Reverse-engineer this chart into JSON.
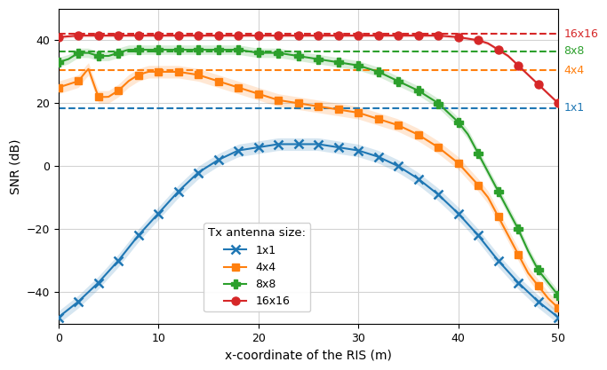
{
  "xlabel": "x-coordinate of the RIS (m)",
  "ylabel": "SNR (dB)",
  "xlim": [
    0,
    50
  ],
  "ylim": [
    -50,
    50
  ],
  "yticks": [
    -40,
    -20,
    0,
    20,
    40
  ],
  "xticks": [
    0,
    10,
    20,
    30,
    40,
    50
  ],
  "colors": {
    "1x1": "#1f77b4",
    "4x4": "#ff7f0e",
    "8x8": "#2ca02c",
    "16x16": "#d62728"
  },
  "hlines": {
    "1x1": 18.5,
    "4x4": 30.5,
    "8x8": 36.5,
    "16x16": 42.0
  },
  "legend_title": "Tx antenna size:",
  "right_labels_order": [
    "16x16",
    "8x8",
    "4x4",
    "1x1"
  ],
  "ci": {
    "1x1": 2.0,
    "4x4": 2.0,
    "8x8": 1.5,
    "16x16": 0.5
  },
  "y_1x1_pts": {
    "0": -48,
    "2": -43,
    "4": -37,
    "6": -30,
    "8": -22,
    "10": -15,
    "12": -8,
    "14": -2,
    "16": 2,
    "18": 5,
    "20": 6,
    "22": 7,
    "24": 7,
    "25": 7,
    "26": 7,
    "28": 6,
    "30": 5,
    "32": 3,
    "34": 0,
    "36": -4,
    "38": -9,
    "40": -15,
    "42": -22,
    "44": -30,
    "46": -37,
    "48": -43,
    "50": -48
  },
  "y_4x4_pts": {
    "0": 25,
    "2": 27,
    "3": 31,
    "4": 22,
    "5": 22,
    "6": 24,
    "7": 27,
    "8": 29,
    "9": 30,
    "10": 30,
    "12": 30,
    "14": 29,
    "16": 27,
    "18": 25,
    "20": 23,
    "22": 21,
    "24": 20,
    "26": 19,
    "28": 18,
    "30": 17,
    "32": 15,
    "34": 13,
    "36": 10,
    "38": 6,
    "40": 1,
    "42": -6,
    "43": -10,
    "44": -16,
    "45": -22,
    "46": -28,
    "47": -34,
    "48": -38,
    "49": -42,
    "50": -45
  },
  "y_8x8_pts": {
    "0": 33,
    "1": 34,
    "2": 36,
    "3": 36,
    "4": 35,
    "5": 35,
    "6": 36,
    "7": 37,
    "8": 37,
    "10": 37,
    "12": 37,
    "14": 37,
    "16": 37,
    "18": 37,
    "20": 36,
    "22": 36,
    "24": 35,
    "26": 34,
    "28": 33,
    "30": 32,
    "32": 30,
    "34": 27,
    "36": 24,
    "38": 20,
    "40": 14,
    "41": 10,
    "42": 4,
    "43": -2,
    "44": -8,
    "45": -14,
    "46": -20,
    "47": -27,
    "48": -33,
    "49": -37,
    "50": -41
  },
  "y_16x16_pts": {
    "0": 41,
    "2": 41.5,
    "4": 41.5,
    "6": 41.5,
    "8": 41.5,
    "10": 41.5,
    "12": 41.5,
    "14": 41.5,
    "16": 41.5,
    "18": 41.5,
    "20": 41.5,
    "22": 41.5,
    "24": 41.5,
    "26": 41.5,
    "28": 41.5,
    "30": 41.5,
    "32": 41.5,
    "34": 41.5,
    "36": 41.5,
    "38": 41.5,
    "40": 41,
    "42": 40,
    "43": 39,
    "44": 37,
    "45": 35,
    "46": 32,
    "47": 29,
    "48": 26,
    "49": 23,
    "50": 20
  }
}
